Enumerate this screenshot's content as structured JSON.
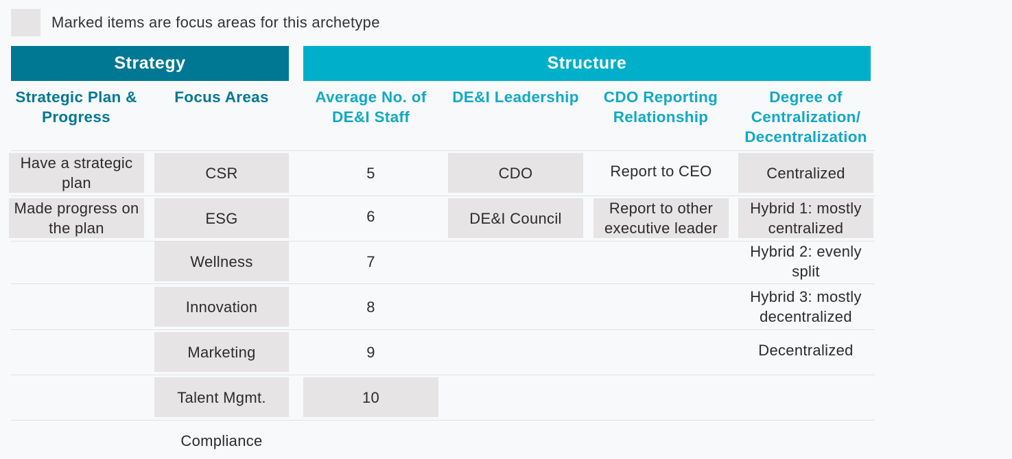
{
  "legend": {
    "text": "Marked items are focus areas for this archetype"
  },
  "groups": {
    "strategy": "Strategy",
    "structure": "Structure"
  },
  "columns": {
    "strategic_plan": "Strategic Plan & Progress",
    "focus_areas": "Focus Areas",
    "avg_staff": "Average No. of DE&I Staff",
    "leadership": "DE&I Leadership",
    "cdo_reporting": "CDO Reporting Relationship",
    "centralization": "Degree of Centralization/ Decentralization"
  },
  "cells": {
    "strategic_plan": [
      {
        "text": "Have a strategic plan",
        "marked": true
      },
      {
        "text": "Made progress on the plan",
        "marked": true
      }
    ],
    "focus_areas": [
      {
        "text": "CSR",
        "marked": true
      },
      {
        "text": "ESG",
        "marked": true
      },
      {
        "text": "Wellness",
        "marked": true
      },
      {
        "text": "Innovation",
        "marked": true
      },
      {
        "text": "Marketing",
        "marked": true
      },
      {
        "text": "Talent Mgmt.",
        "marked": true
      },
      {
        "text": "Compliance",
        "marked": false
      }
    ],
    "avg_staff": [
      {
        "text": "5",
        "marked": false
      },
      {
        "text": "6",
        "marked": false
      },
      {
        "text": "7",
        "marked": false
      },
      {
        "text": "8",
        "marked": false
      },
      {
        "text": "9",
        "marked": false
      },
      {
        "text": "10",
        "marked": true
      }
    ],
    "leadership": [
      {
        "text": "CDO",
        "marked": true
      },
      {
        "text": "DE&I Council",
        "marked": true
      }
    ],
    "cdo_reporting": [
      {
        "text": "Report to CEO",
        "marked": false
      },
      {
        "text": "Report to other executive leader",
        "marked": true
      }
    ],
    "centralization": [
      {
        "text": "Centralized",
        "marked": true
      },
      {
        "text": "Hybrid 1: mostly centralized",
        "marked": true
      },
      {
        "text": "Hybrid 2: evenly split",
        "marked": false
      },
      {
        "text": "Hybrid 3: mostly decentralized",
        "marked": false
      },
      {
        "text": "Decentralized",
        "marked": false
      }
    ]
  }
}
